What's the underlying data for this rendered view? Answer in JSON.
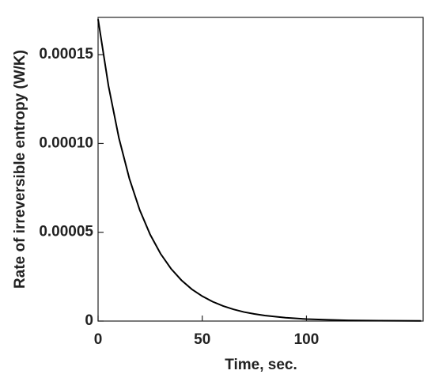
{
  "chart_data": {
    "type": "line",
    "x_label": "Time, sec.",
    "y_label": "Rate of irreversible entropy (W/K)",
    "x": [
      0,
      5,
      10,
      15,
      20,
      25,
      30,
      35,
      40,
      45,
      50,
      55,
      60,
      65,
      70,
      75,
      80,
      90,
      100,
      110,
      120,
      135,
      155
    ],
    "series": [
      {
        "color": "#000000",
        "values": [
          0.00017,
          0.0001324,
          0.0001031,
          8.03e-05,
          6.25e-05,
          4.87e-05,
          3.79e-05,
          2.95e-05,
          2.3e-05,
          1.79e-05,
          1.4e-05,
          1.09e-05,
          8.5e-06,
          6.6e-06,
          5.1e-06,
          4e-06,
          3.1e-06,
          1.9e-06,
          1.1e-06,
          7e-07,
          4e-07,
          2e-07,
          1e-07
        ]
      }
    ],
    "xlim": [
      0,
      156
    ],
    "xticks": [
      0,
      50,
      100
    ],
    "ylim": [
      0,
      0.000171
    ],
    "yticks": [
      0,
      5e-05,
      {
        "value": 0.0001,
        "label": "0.00010"
      },
      0.00015
    ]
  }
}
